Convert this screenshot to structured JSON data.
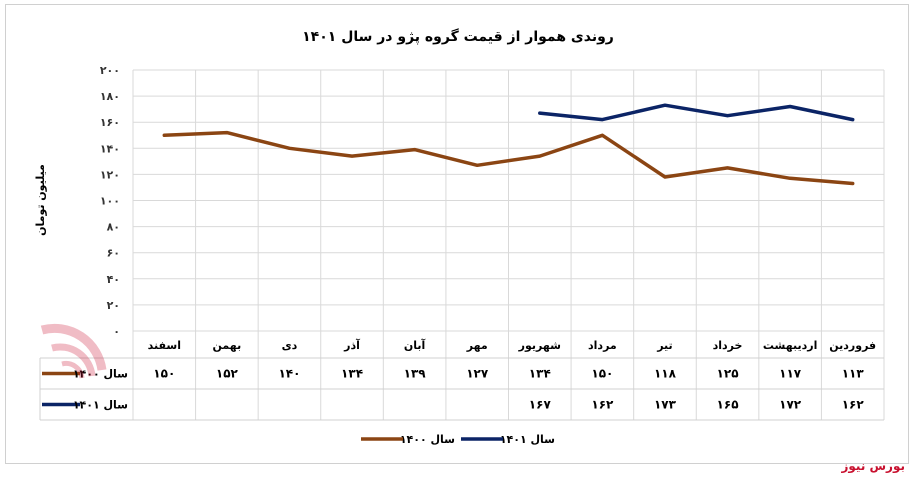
{
  "chart_data": {
    "type": "line",
    "title": "روندی هموار از قیمت گروه پژو در سال ۱۴۰۱",
    "ylabel": "میلیون تومان",
    "xlabel": "",
    "ylim": [
      0,
      200
    ],
    "yticks": [
      0,
      20,
      40,
      60,
      80,
      100,
      120,
      140,
      160,
      180,
      200
    ],
    "ytick_labels": [
      "۰",
      "۲۰",
      "۴۰",
      "۶۰",
      "۸۰",
      "۱۰۰",
      "۱۲۰",
      "۱۴۰",
      "۱۶۰",
      "۱۸۰",
      "۲۰۰"
    ],
    "grid": true,
    "legend_position": "bottom",
    "categories": [
      "فروردین",
      "اردیبهشت",
      "خرداد",
      "تیر",
      "مرداد",
      "شهریور",
      "مهر",
      "آبان",
      "آذر",
      "دی",
      "بهمن",
      "اسفند"
    ],
    "series": [
      {
        "name": "سال ۱۴۰۰",
        "color": "#8b4513",
        "values": [
          113,
          117,
          125,
          118,
          150,
          134,
          127,
          139,
          134,
          140,
          152,
          150
        ],
        "labels": [
          "۱۱۳",
          "۱۱۷",
          "۱۲۵",
          "۱۱۸",
          "۱۵۰",
          "۱۳۴",
          "۱۲۷",
          "۱۳۹",
          "۱۳۴",
          "۱۴۰",
          "۱۵۲",
          "۱۵۰"
        ]
      },
      {
        "name": "سال ۱۴۰۱",
        "color": "#0b2466",
        "values": [
          162,
          172,
          165,
          173,
          162,
          167,
          null,
          null,
          null,
          null,
          null,
          null
        ],
        "labels": [
          "۱۶۲",
          "۱۷۲",
          "۱۶۵",
          "۱۷۳",
          "۱۶۲",
          "۱۶۷",
          "",
          "",
          "",
          "",
          "",
          ""
        ]
      }
    ]
  },
  "watermark": {
    "text": "بورس نیوز",
    "color": "#c8102e"
  }
}
